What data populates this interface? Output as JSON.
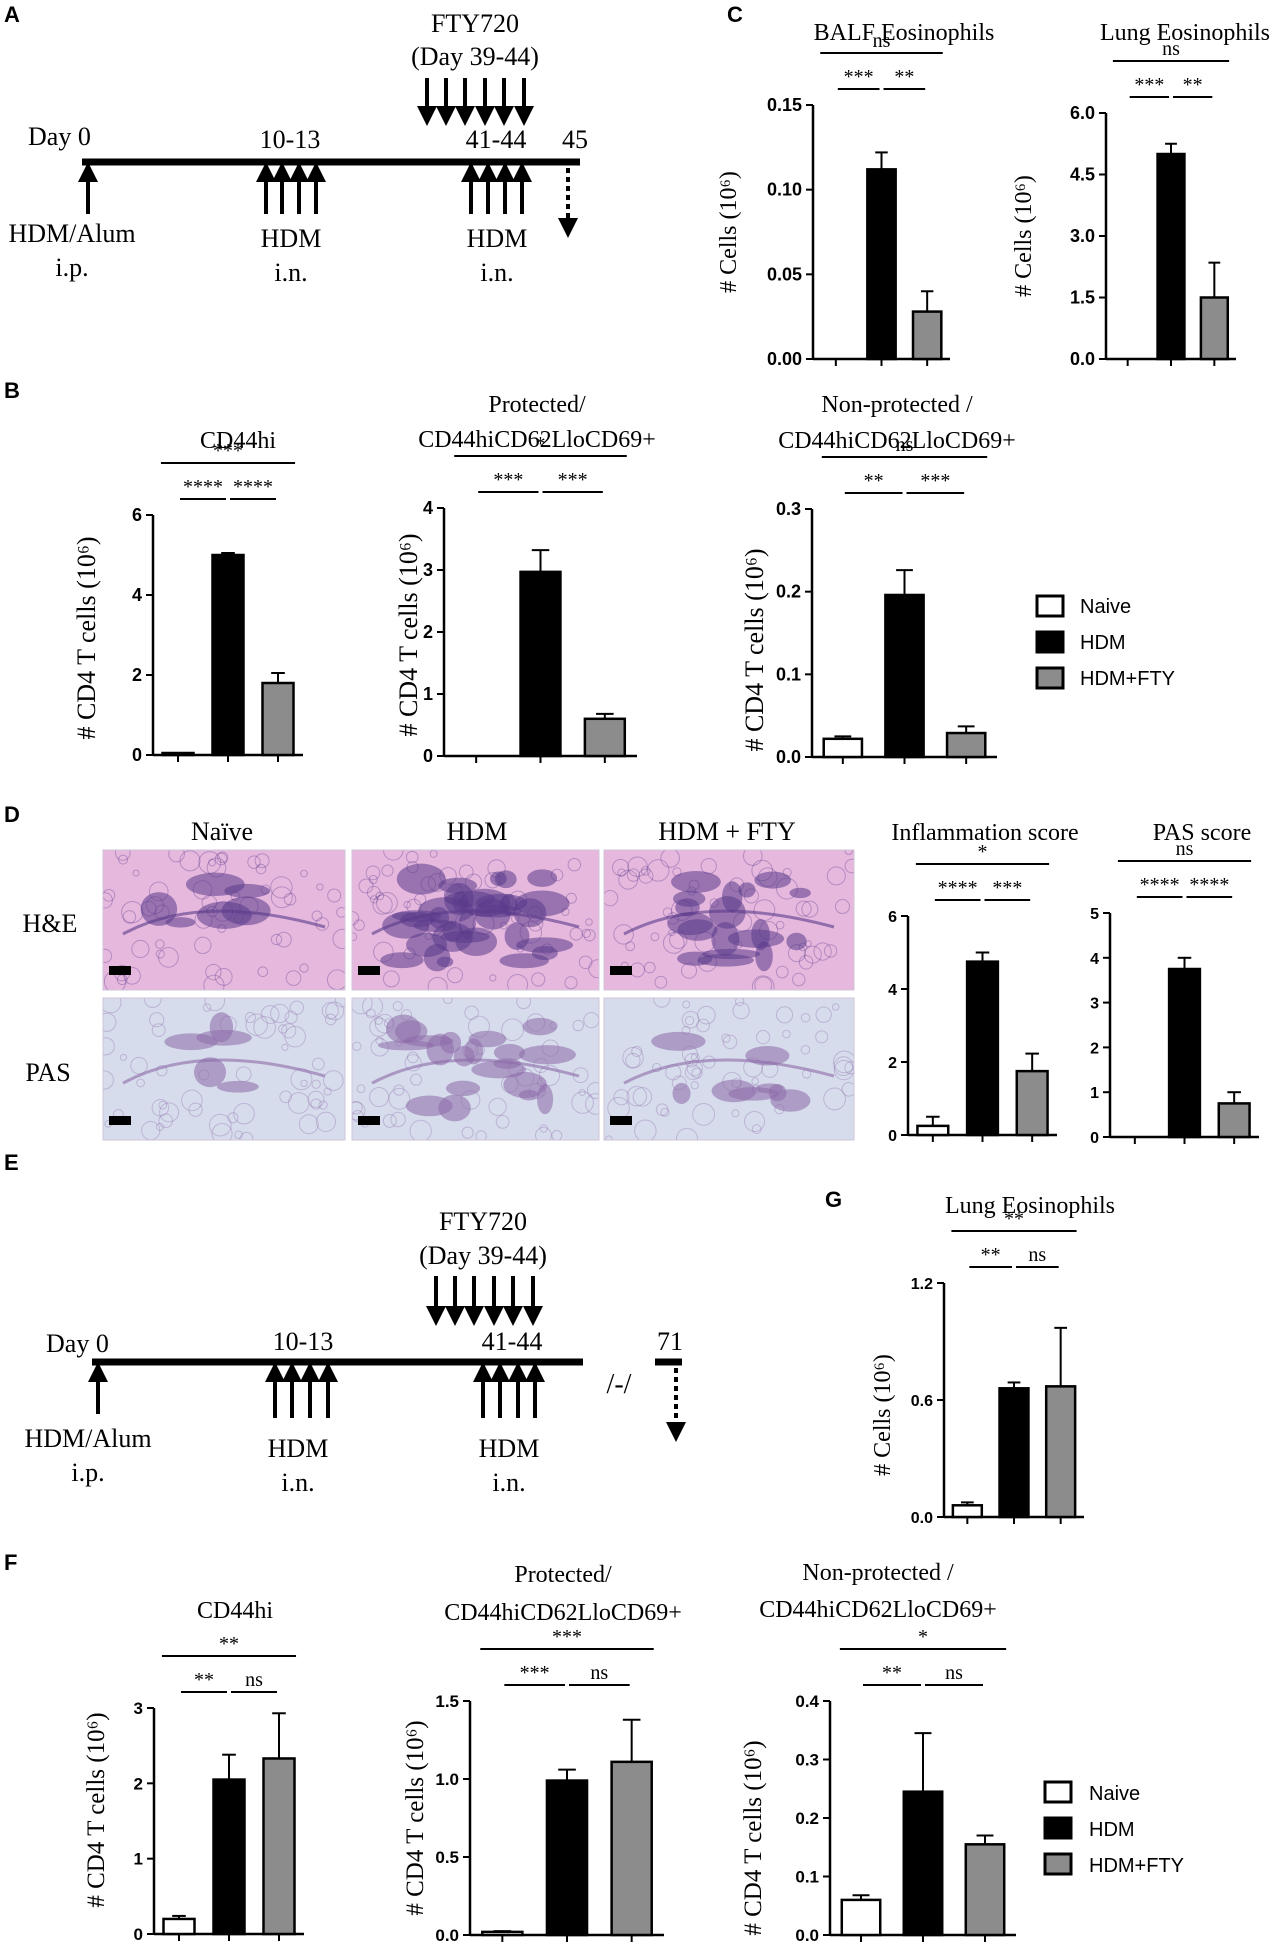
{
  "panel_letters": {
    "A": "A",
    "B": "B",
    "C": "C",
    "D": "D",
    "E": "E",
    "F": "F",
    "G": "G"
  },
  "timeline_A": {
    "drug": "FTY720",
    "drug_days": "(Day 39-44)",
    "day0": "Day 0",
    "d1": "10-13",
    "d2": "41-44",
    "end": "45",
    "sens_line1": "HDM/Alum",
    "sens_line2": "i.p.",
    "ch1_line1": "HDM",
    "ch1_line2": "i.n.",
    "ch2_line1": "HDM",
    "ch2_line2": "i.n."
  },
  "timeline_E": {
    "drug": "FTY720",
    "drug_days": "(Day 39-44)",
    "day0": "Day 0",
    "d1": "10-13",
    "d2": "41-44",
    "break": "/-/",
    "end": "71",
    "sens_line1": "HDM/Alum",
    "sens_line2": "i.p.",
    "ch1_line1": "HDM",
    "ch1_line2": "i.n.",
    "ch2_line1": "HDM",
    "ch2_line2": "i.n."
  },
  "legend": {
    "items": [
      {
        "label": "Naive",
        "color": "#ffffff"
      },
      {
        "label": "HDM",
        "color": "#000000"
      },
      {
        "label": "HDM+FTY",
        "color": "#8c8c8c"
      }
    ]
  },
  "histology": {
    "columns": [
      "Naïve",
      "HDM",
      "HDM + FTY"
    ],
    "rows": [
      "H&E",
      "PAS"
    ],
    "colors": {
      "he_light": "#e6b8de",
      "he_dark": "#5a3a8a",
      "pas_light": "#d6dcec",
      "pas_dark": "#8c6aa8"
    }
  },
  "chart_data": [
    {
      "id": "C1",
      "type": "bar",
      "title": "BALF Eosinophils",
      "ylabel": "# Cells (10⁶)",
      "categories": [
        "Naive",
        "HDM",
        "HDM+FTY"
      ],
      "values": [
        0.0,
        0.112,
        0.028
      ],
      "errors": [
        0.0,
        0.01,
        0.012
      ],
      "ylim": [
        0,
        0.15
      ],
      "yticks": [
        "0.00",
        "0.05",
        "0.10",
        "0.15"
      ],
      "sig": [
        {
          "label": "***",
          "from": 0,
          "to": 1
        },
        {
          "label": "**",
          "from": 1,
          "to": 2
        },
        {
          "label": "ns",
          "from": 0,
          "to": 2
        }
      ]
    },
    {
      "id": "C2",
      "type": "bar",
      "title": "Lung Eosinophils",
      "ylabel": "# Cells (10⁶)",
      "categories": [
        "Naive",
        "HDM",
        "HDM+FTY"
      ],
      "values": [
        0.0,
        5.0,
        1.5
      ],
      "errors": [
        0.0,
        0.25,
        0.85
      ],
      "ylim": [
        0,
        6
      ],
      "yticks": [
        "0.0",
        "1.5",
        "3.0",
        "4.5",
        "6.0"
      ],
      "sig": [
        {
          "label": "***",
          "from": 0,
          "to": 1
        },
        {
          "label": "**",
          "from": 1,
          "to": 2
        },
        {
          "label": "ns",
          "from": 0,
          "to": 2
        }
      ]
    },
    {
      "id": "B1",
      "type": "bar",
      "title": "CD44hi",
      "ylabel": "# CD4 T cells (10⁶)",
      "categories": [
        "Naive",
        "HDM",
        "HDM+FTY"
      ],
      "values": [
        0.05,
        5.0,
        1.8
      ],
      "errors": [
        0.0,
        0.05,
        0.25
      ],
      "ylim": [
        0,
        6
      ],
      "yticks": [
        "0",
        "2",
        "4",
        "6"
      ],
      "sig": [
        {
          "label": "****",
          "from": 0,
          "to": 1
        },
        {
          "label": "****",
          "from": 1,
          "to": 2
        },
        {
          "label": "***",
          "from": 0,
          "to": 2
        }
      ]
    },
    {
      "id": "B2",
      "type": "bar",
      "title": "Protected/\nCD44hiCD62LloCD69+",
      "ylabel": "# CD4 T cells (10⁶)",
      "categories": [
        "Naive",
        "HDM",
        "HDM+FTY"
      ],
      "values": [
        0.0,
        2.97,
        0.6
      ],
      "errors": [
        0.0,
        0.35,
        0.08
      ],
      "ylim": [
        0,
        4
      ],
      "yticks": [
        "0",
        "1",
        "2",
        "3",
        "4"
      ],
      "sig": [
        {
          "label": "***",
          "from": 0,
          "to": 1
        },
        {
          "label": "***",
          "from": 1,
          "to": 2
        },
        {
          "label": "*",
          "from": 0,
          "to": 2
        }
      ]
    },
    {
      "id": "B3",
      "type": "bar",
      "title": "Non-protected /\nCD44hiCD62LloCD69+",
      "ylabel": "# CD4 T cells (10⁶)",
      "categories": [
        "Naive",
        "HDM",
        "HDM+FTY"
      ],
      "values": [
        0.022,
        0.196,
        0.029
      ],
      "errors": [
        0.003,
        0.03,
        0.008
      ],
      "ylim": [
        0,
        0.3
      ],
      "yticks": [
        "0.0",
        "0.1",
        "0.2",
        "0.3"
      ],
      "sig": [
        {
          "label": "**",
          "from": 0,
          "to": 1
        },
        {
          "label": "***",
          "from": 1,
          "to": 2
        },
        {
          "label": "ns",
          "from": 0,
          "to": 2
        }
      ]
    },
    {
      "id": "D1",
      "type": "bar",
      "title": "Inflammation score",
      "ylabel": "",
      "categories": [
        "Naive",
        "HDM",
        "HDM+FTY"
      ],
      "values": [
        0.25,
        4.75,
        1.75
      ],
      "errors": [
        0.25,
        0.25,
        0.48
      ],
      "ylim": [
        0,
        6
      ],
      "yticks": [
        "0",
        "2",
        "4",
        "6"
      ],
      "sig": [
        {
          "label": "****",
          "from": 0,
          "to": 1
        },
        {
          "label": "***",
          "from": 1,
          "to": 2
        },
        {
          "label": "*",
          "from": 0,
          "to": 2
        }
      ]
    },
    {
      "id": "D2",
      "type": "bar",
      "title": "PAS score",
      "ylabel": "",
      "categories": [
        "Naive",
        "HDM",
        "HDM+FTY"
      ],
      "values": [
        0.0,
        3.75,
        0.75
      ],
      "errors": [
        0.0,
        0.25,
        0.25
      ],
      "ylim": [
        0,
        5
      ],
      "yticks": [
        "0",
        "1",
        "2",
        "3",
        "4",
        "5"
      ],
      "sig": [
        {
          "label": "****",
          "from": 0,
          "to": 1
        },
        {
          "label": "****",
          "from": 1,
          "to": 2
        },
        {
          "label": "ns",
          "from": 0,
          "to": 2
        }
      ]
    },
    {
      "id": "G1",
      "type": "bar",
      "title": "Lung Eosinophils",
      "ylabel": "# Cells (10⁶)",
      "categories": [
        "Naive",
        "HDM",
        "HDM+FTY"
      ],
      "values": [
        0.06,
        0.66,
        0.67
      ],
      "errors": [
        0.015,
        0.03,
        0.3
      ],
      "ylim": [
        0,
        1.2
      ],
      "yticks": [
        "0.0",
        "0.6",
        "1.2"
      ],
      "sig": [
        {
          "label": "**",
          "from": 0,
          "to": 1
        },
        {
          "label": "ns",
          "from": 1,
          "to": 2
        },
        {
          "label": "**",
          "from": 0,
          "to": 2
        }
      ]
    },
    {
      "id": "F1",
      "type": "bar",
      "title": "CD44hi",
      "ylabel": "# CD4 T cells (10⁶)",
      "categories": [
        "Naive",
        "HDM",
        "HDM+FTY"
      ],
      "values": [
        0.2,
        2.05,
        2.33
      ],
      "errors": [
        0.04,
        0.33,
        0.6
      ],
      "ylim": [
        0,
        3
      ],
      "yticks": [
        "0",
        "1",
        "2",
        "3"
      ],
      "sig": [
        {
          "label": "**",
          "from": 0,
          "to": 1
        },
        {
          "label": "ns",
          "from": 1,
          "to": 2
        },
        {
          "label": "**",
          "from": 0,
          "to": 2
        }
      ]
    },
    {
      "id": "F2",
      "type": "bar",
      "title": "Protected/\nCD44hiCD62LloCD69+",
      "ylabel": "# CD4 T cells (10⁶)",
      "categories": [
        "Naive",
        "HDM",
        "HDM+FTY"
      ],
      "values": [
        0.02,
        0.99,
        1.11
      ],
      "errors": [
        0.005,
        0.07,
        0.27
      ],
      "ylim": [
        0,
        1.5
      ],
      "yticks": [
        "0.0",
        "0.5",
        "1.0",
        "1.5"
      ],
      "sig": [
        {
          "label": "***",
          "from": 0,
          "to": 1
        },
        {
          "label": "ns",
          "from": 1,
          "to": 2
        },
        {
          "label": "***",
          "from": 0,
          "to": 2
        }
      ]
    },
    {
      "id": "F3",
      "type": "bar",
      "title": "Non-protected /\nCD44hiCD62LloCD69+",
      "ylabel": "# CD4 T cells (10⁶)",
      "categories": [
        "Naive",
        "HDM",
        "HDM+FTY"
      ],
      "values": [
        0.06,
        0.245,
        0.155
      ],
      "errors": [
        0.008,
        0.1,
        0.015
      ],
      "ylim": [
        0,
        0.4
      ],
      "yticks": [
        "0.0",
        "0.1",
        "0.2",
        "0.3",
        "0.4"
      ],
      "sig": [
        {
          "label": "**",
          "from": 0,
          "to": 1
        },
        {
          "label": "ns",
          "from": 1,
          "to": 2
        },
        {
          "label": "*",
          "from": 0,
          "to": 2
        }
      ]
    }
  ]
}
